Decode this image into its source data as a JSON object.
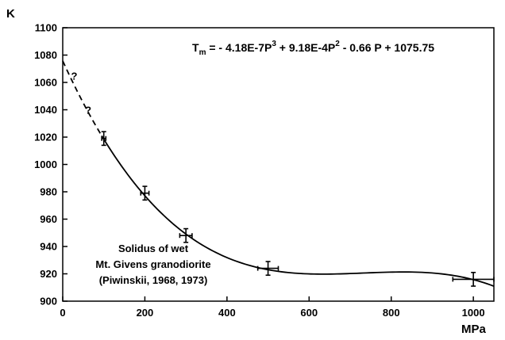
{
  "chart_data": {
    "type": "scatter",
    "title": "",
    "xlabel": "MPa",
    "ylabel": "K",
    "xlim": [
      0,
      1050
    ],
    "ylim": [
      900,
      1100
    ],
    "x_ticks": [
      0,
      200,
      400,
      600,
      800,
      1000
    ],
    "y_ticks": [
      900,
      920,
      940,
      960,
      980,
      1000,
      1020,
      1040,
      1060,
      1080,
      1100
    ],
    "grid": false,
    "equation": {
      "lhs_main": "T",
      "lhs_sub": "m",
      "part1": " = - 4.18E-7P",
      "exp1": "3",
      "part2": " + 9.18E-4P",
      "exp2": "2",
      "part3": " - 0.66 P + 1075.75"
    },
    "fit_coefficients": {
      "a3": -4.18e-07,
      "a2": 0.000918,
      "a1": -0.66,
      "a0": 1075.75
    },
    "fit_solid_range": [
      95,
      1050
    ],
    "fit_dashed_range": [
      0,
      95
    ],
    "question_marks": [
      {
        "x": 28,
        "y": 1062,
        "text": "?"
      },
      {
        "x": 62,
        "y": 1037,
        "text": "?"
      }
    ],
    "points": [
      {
        "x": 100,
        "y": 1019,
        "xerr": 5,
        "yerr": 5
      },
      {
        "x": 200,
        "y": 979,
        "xerr": 10,
        "yerr": 5
      },
      {
        "x": 300,
        "y": 948,
        "xerr": 15,
        "yerr": 5
      },
      {
        "x": 500,
        "y": 924,
        "xerr": 25,
        "yerr": 5
      },
      {
        "x": 1000,
        "y": 916,
        "xerr": 50,
        "yerr": 5
      }
    ],
    "annotation_lines": [
      "Solidus of wet",
      "Mt. Givens granodiorite",
      "(Piwinskii, 1968, 1973)"
    ]
  }
}
